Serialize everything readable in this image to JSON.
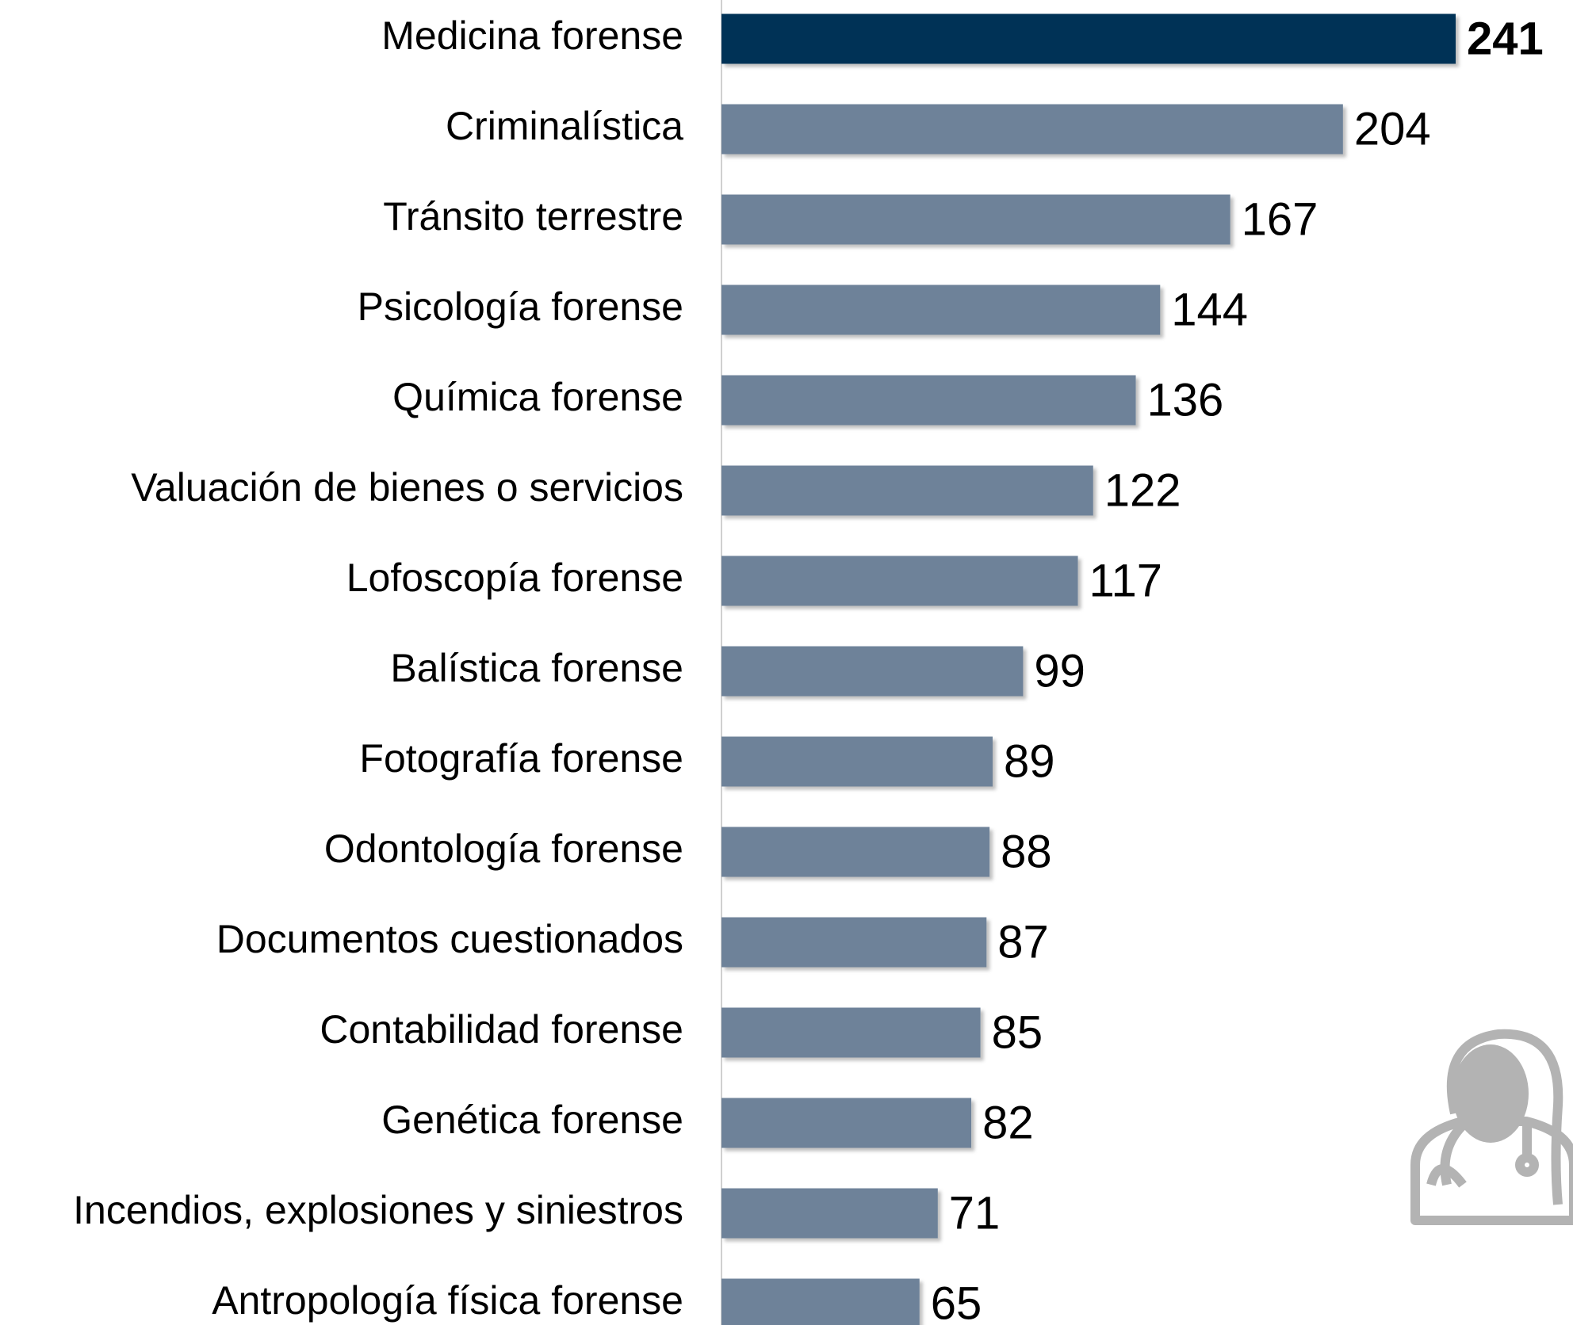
{
  "chart_data": {
    "type": "bar",
    "orientation": "horizontal",
    "categories": [
      "Medicina forense",
      "Criminalística",
      "Tránsito terrestre",
      "Psicología forense",
      "Química forense",
      "Valuación de bienes o servicios",
      "Lofoscopía forense",
      "Balística forense",
      "Fotografía forense",
      "Odontología forense",
      "Documentos cuestionados",
      "Contabilidad forense",
      "Genética forense",
      "Incendios, explosiones y siniestros",
      "Antropología física forense"
    ],
    "values": [
      241,
      204,
      167,
      144,
      136,
      122,
      117,
      99,
      89,
      88,
      87,
      85,
      82,
      71,
      65
    ],
    "colors": [
      "#003057",
      "#6e8299",
      "#6e8299",
      "#6e8299",
      "#6e8299",
      "#6e8299",
      "#6e8299",
      "#6e8299",
      "#6e8299",
      "#6e8299",
      "#6e8299",
      "#6e8299",
      "#6e8299",
      "#6e8299",
      "#6e8299"
    ]
  }
}
